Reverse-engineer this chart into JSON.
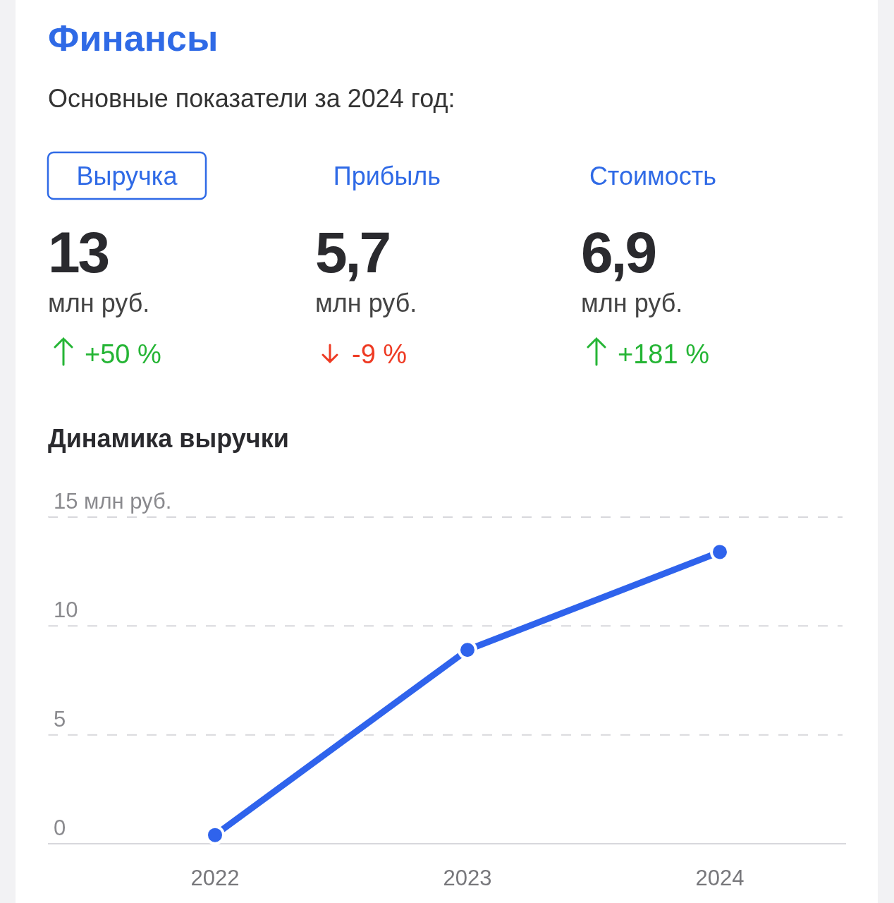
{
  "chart_data": [
    {
      "type": "other",
      "title": "Финансы",
      "subtitle": "Основные показатели за 2024 год:",
      "categories": [
        "Выручка",
        "Прибыль",
        "Стоимость"
      ],
      "colors": [
        "#25b535",
        "#ee3b24",
        "#25b535"
      ],
      "annotations": [
        "13",
        "5,7",
        "6,9",
        "млн руб.",
        "млн руб.",
        "млн руб.",
        "+50 %",
        "-9 %",
        "+181 %"
      ]
    },
    {
      "type": "line",
      "title": "Динамика выручки",
      "categories": [
        "2022",
        "2023",
        "2024"
      ],
      "series": [
        {
          "color": "#2f63ec",
          "values": [
            0.4,
            8.9,
            13.4
          ]
        }
      ],
      "ylim": [
        0,
        15
      ],
      "yticks": [
        0,
        5,
        10,
        {
          "value": 15,
          "label": "15 млн руб."
        }
      ],
      "grid": "y",
      "marker": "circle",
      "line_style": "solid"
    }
  ]
}
